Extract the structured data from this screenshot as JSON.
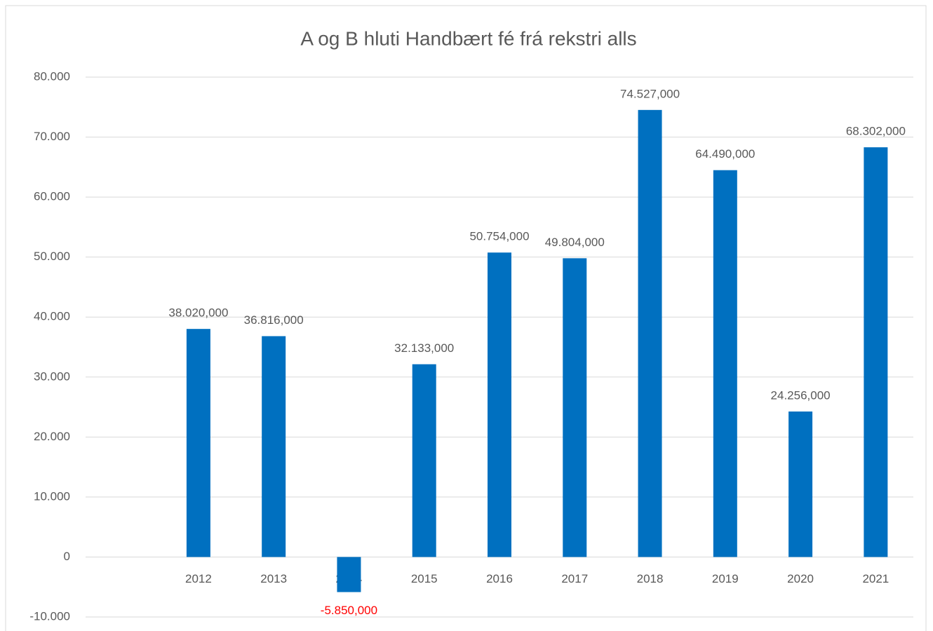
{
  "chart_data": {
    "type": "bar",
    "title": "A og B hluti Handbært fé frá rekstri alls",
    "categories": [
      null,
      "2012",
      "2013",
      "2014",
      "2015",
      "2016",
      "2017",
      "2018",
      "2019",
      "2020",
      "2021"
    ],
    "values": [
      null,
      38020,
      36816,
      -5850,
      32133,
      50754,
      49804,
      74527,
      64490,
      24256,
      68302
    ],
    "value_labels": [
      null,
      "38.020,000",
      "36.816,000",
      "-5.850,000",
      "32.133,000",
      "50.754,000",
      "49.804,000",
      "74.527,000",
      "64.490,000",
      "24.256,000",
      "68.302,000"
    ],
    "color": "#0070c0",
    "negative_label_color": "#ff0000",
    "ylim": [
      -10000,
      80000
    ],
    "yticks": [
      {
        "value": -10000,
        "label": "-10.000"
      },
      {
        "value": 0,
        "label": "0"
      },
      {
        "value": 10000,
        "label": "10.000"
      },
      {
        "value": 20000,
        "label": "20.000"
      },
      {
        "value": 30000,
        "label": "30.000"
      },
      {
        "value": 40000,
        "label": "40.000"
      },
      {
        "value": 50000,
        "label": "50.000"
      },
      {
        "value": 60000,
        "label": "60.000"
      },
      {
        "value": 70000,
        "label": "70.000"
      },
      {
        "value": 80000,
        "label": "80.000"
      }
    ],
    "grid": true
  }
}
